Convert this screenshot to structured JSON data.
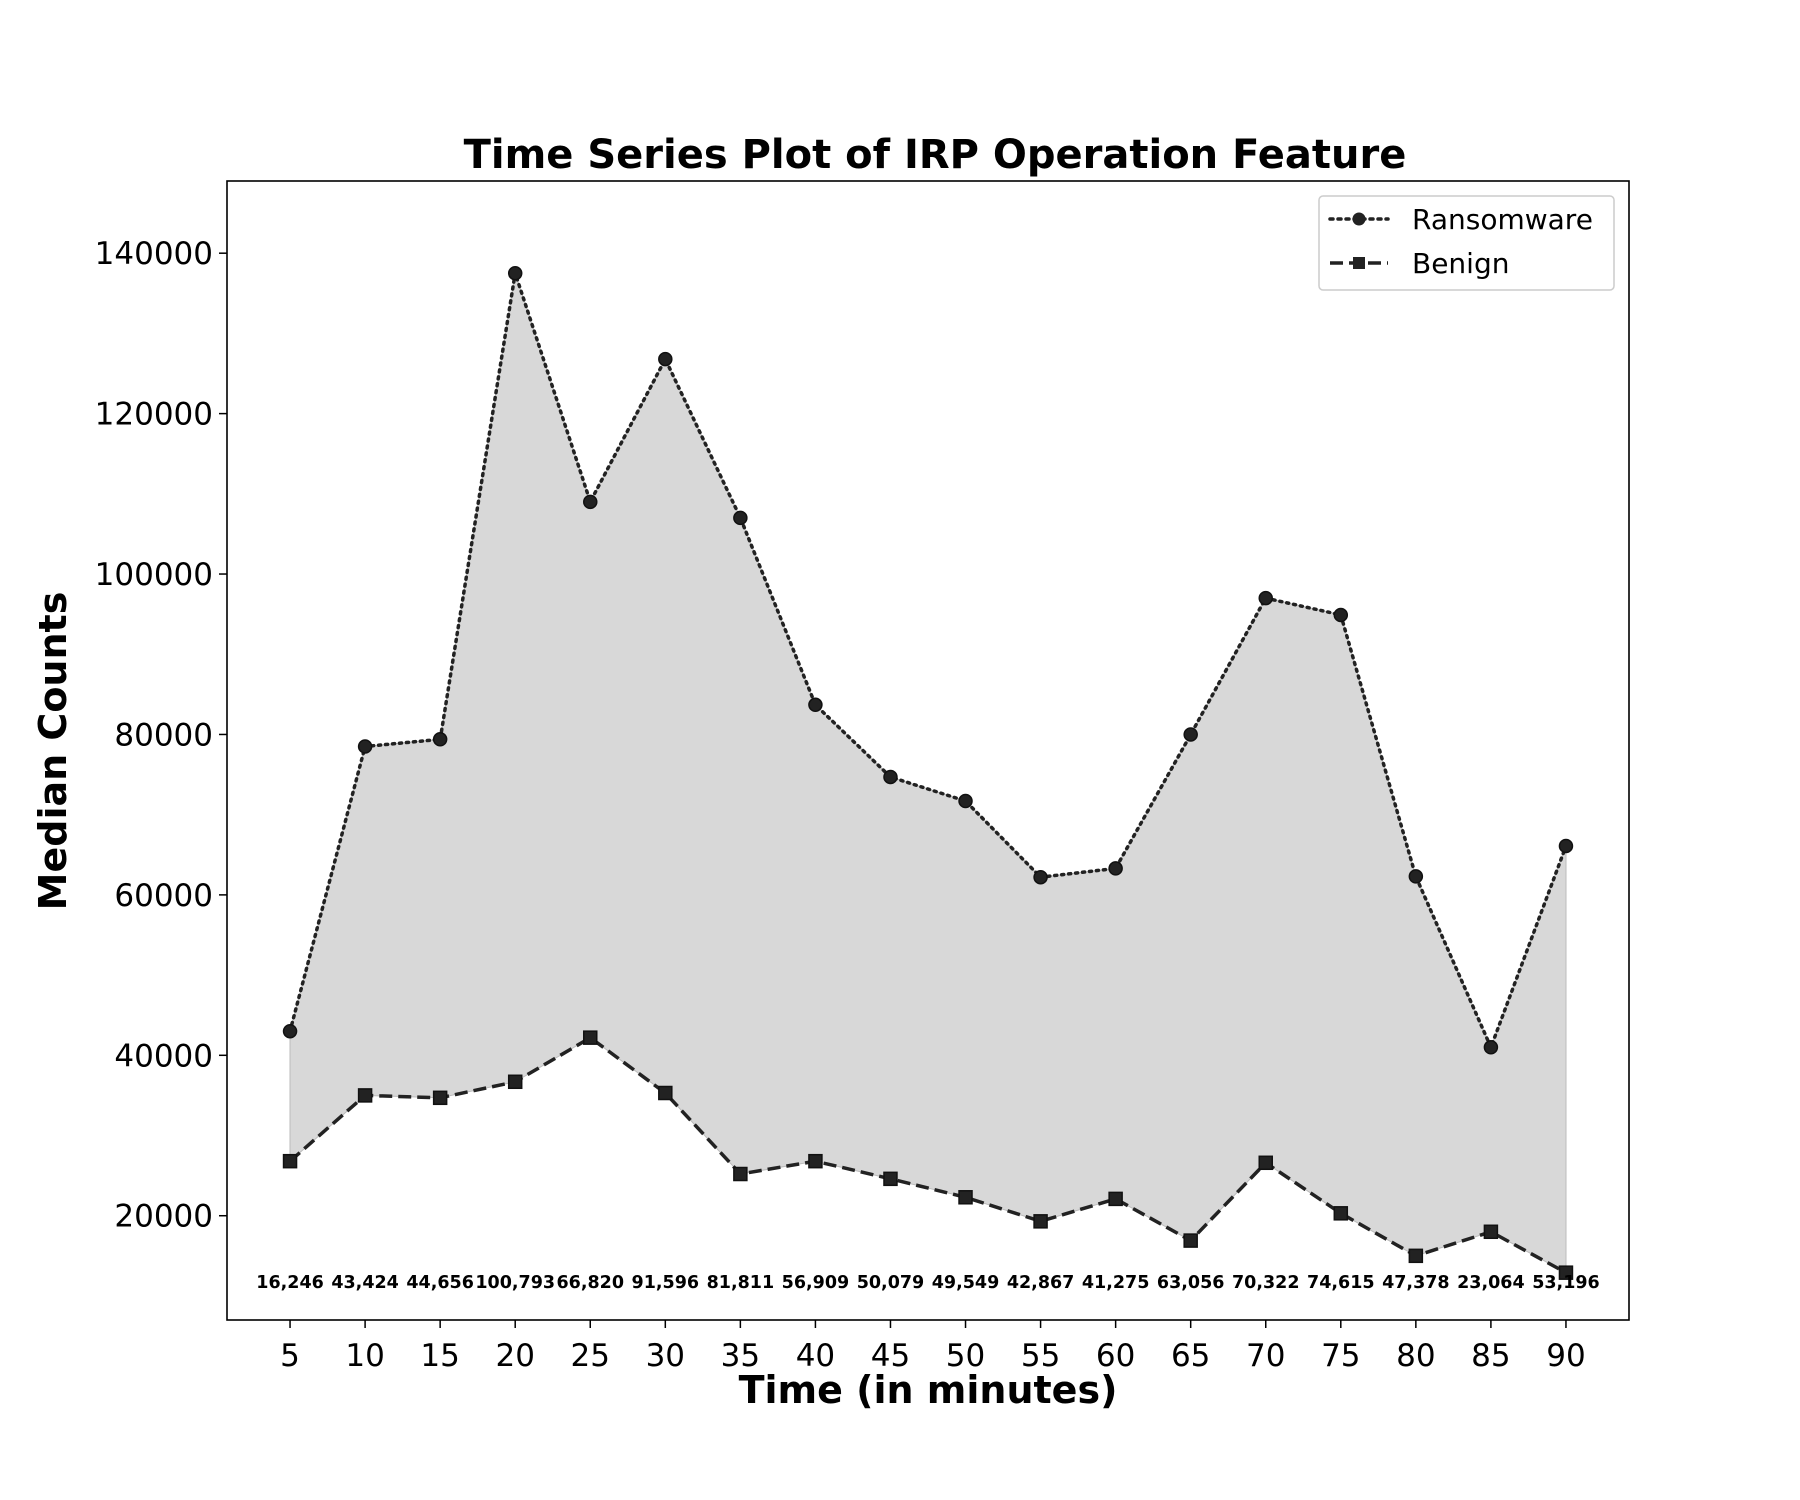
{
  "chart_data": {
    "type": "line",
    "title": "Time Series Plot of IRP Operation Feature",
    "xlabel": "Time (in minutes)",
    "ylabel": "Median Counts",
    "x": [
      5,
      10,
      15,
      20,
      25,
      30,
      35,
      40,
      45,
      50,
      55,
      60,
      65,
      70,
      75,
      80,
      85,
      90
    ],
    "x_tick_labels": [
      "5",
      "10",
      "15",
      "20",
      "25",
      "30",
      "35",
      "40",
      "45",
      "50",
      "55",
      "60",
      "65",
      "70",
      "75",
      "80",
      "85",
      "90"
    ],
    "y_tick_labels": [
      "20000",
      "40000",
      "60000",
      "80000",
      "100000",
      "120000",
      "140000"
    ],
    "y_ticks": [
      20000,
      40000,
      60000,
      80000,
      100000,
      120000,
      140000
    ],
    "xlim": [
      0.8,
      94.2
    ],
    "ylim": [
      7000,
      149000
    ],
    "series": [
      {
        "name": "Ransomware",
        "marker": "circle",
        "line_style": "dotted",
        "values": [
          43000,
          78500,
          79400,
          137500,
          109000,
          126800,
          107000,
          83700,
          74700,
          71700,
          62200,
          63300,
          80000,
          97000,
          94900,
          62300,
          41000,
          66100
        ]
      },
      {
        "name": "Benign",
        "marker": "square",
        "line_style": "dashed",
        "values": [
          26800,
          35000,
          34700,
          36700,
          42200,
          35300,
          25200,
          26800,
          24600,
          22300,
          19300,
          22100,
          16900,
          26600,
          20300,
          15000,
          18000,
          12900
        ]
      }
    ],
    "difference_labels": [
      "16,246",
      "43,424",
      "44,656",
      "100,793",
      "66,820",
      "91,596",
      "81,811",
      "56,909",
      "50,079",
      "49,549",
      "42,867",
      "41,275",
      "63,056",
      "70,322",
      "74,615",
      "47,378",
      "23,064",
      "53,196"
    ],
    "fill_between": true,
    "fill_color": "#d8d8d8",
    "line_color": "#222222",
    "grid": false,
    "legend_position": "top-right"
  }
}
